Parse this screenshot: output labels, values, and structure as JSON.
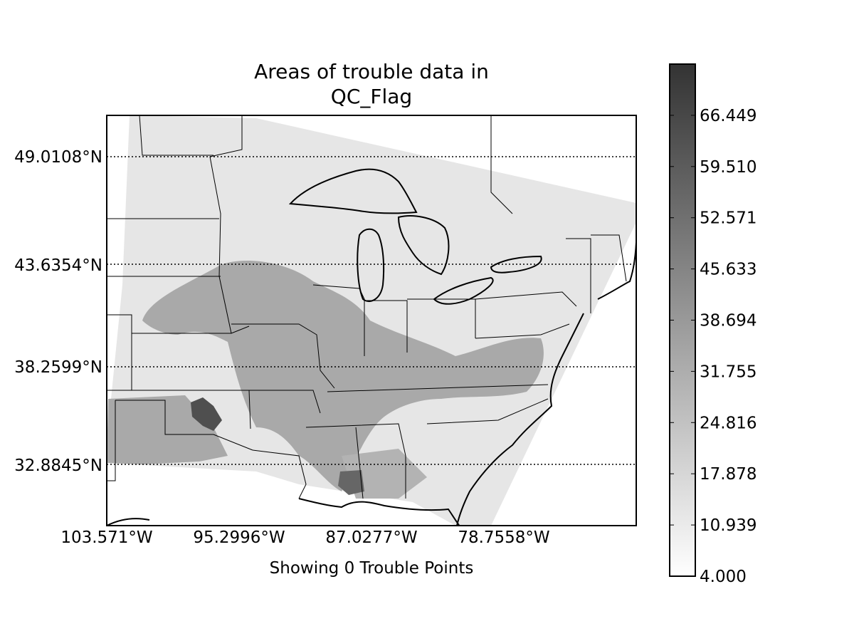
{
  "map": {
    "title_line1": "Areas of trouble data in",
    "title_line2": "QC_Flag",
    "xlabel": "Showing 0 Trouble Points",
    "lat_labels": [
      "49.0108°N",
      "43.6354°N",
      "38.2599°N",
      "32.8845°N"
    ],
    "lon_labels": [
      "103.571°W",
      "95.2996°W",
      "87.0277°W",
      "78.7558°W"
    ],
    "colorbar": {
      "min": 4.0,
      "max": 73.388,
      "tick_labels": [
        "4.000",
        "10.939",
        "17.878",
        "24.816",
        "31.755",
        "38.694",
        "45.633",
        "52.571",
        "59.510",
        "66.449"
      ],
      "colormap": "greys"
    },
    "colors": {
      "swath_light": "#e6e6e6",
      "trouble_medium": "#a9a9a9",
      "trouble_dark": "#4f4f4f"
    }
  }
}
